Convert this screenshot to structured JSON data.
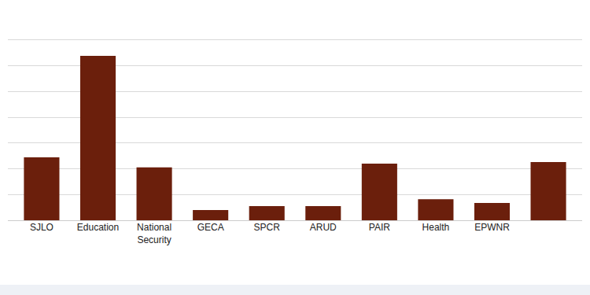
{
  "chart_data": {
    "type": "bar",
    "categories": [
      "SJLO",
      "Education",
      "National Security",
      "GECA",
      "SPCR",
      "ARUD",
      "PAIR",
      "Health",
      "EPWNR",
      null
    ],
    "values": [
      2.44,
      6.38,
      2.05,
      0.4,
      0.55,
      0.55,
      2.2,
      0.82,
      0.67,
      2.26
    ],
    "color": "#6b1f0c",
    "ylim": [
      0,
      8
    ],
    "yticks": [
      0,
      1,
      2,
      3,
      4,
      5,
      6,
      7,
      8
    ],
    "grid": true,
    "tick_labels": "x"
  }
}
